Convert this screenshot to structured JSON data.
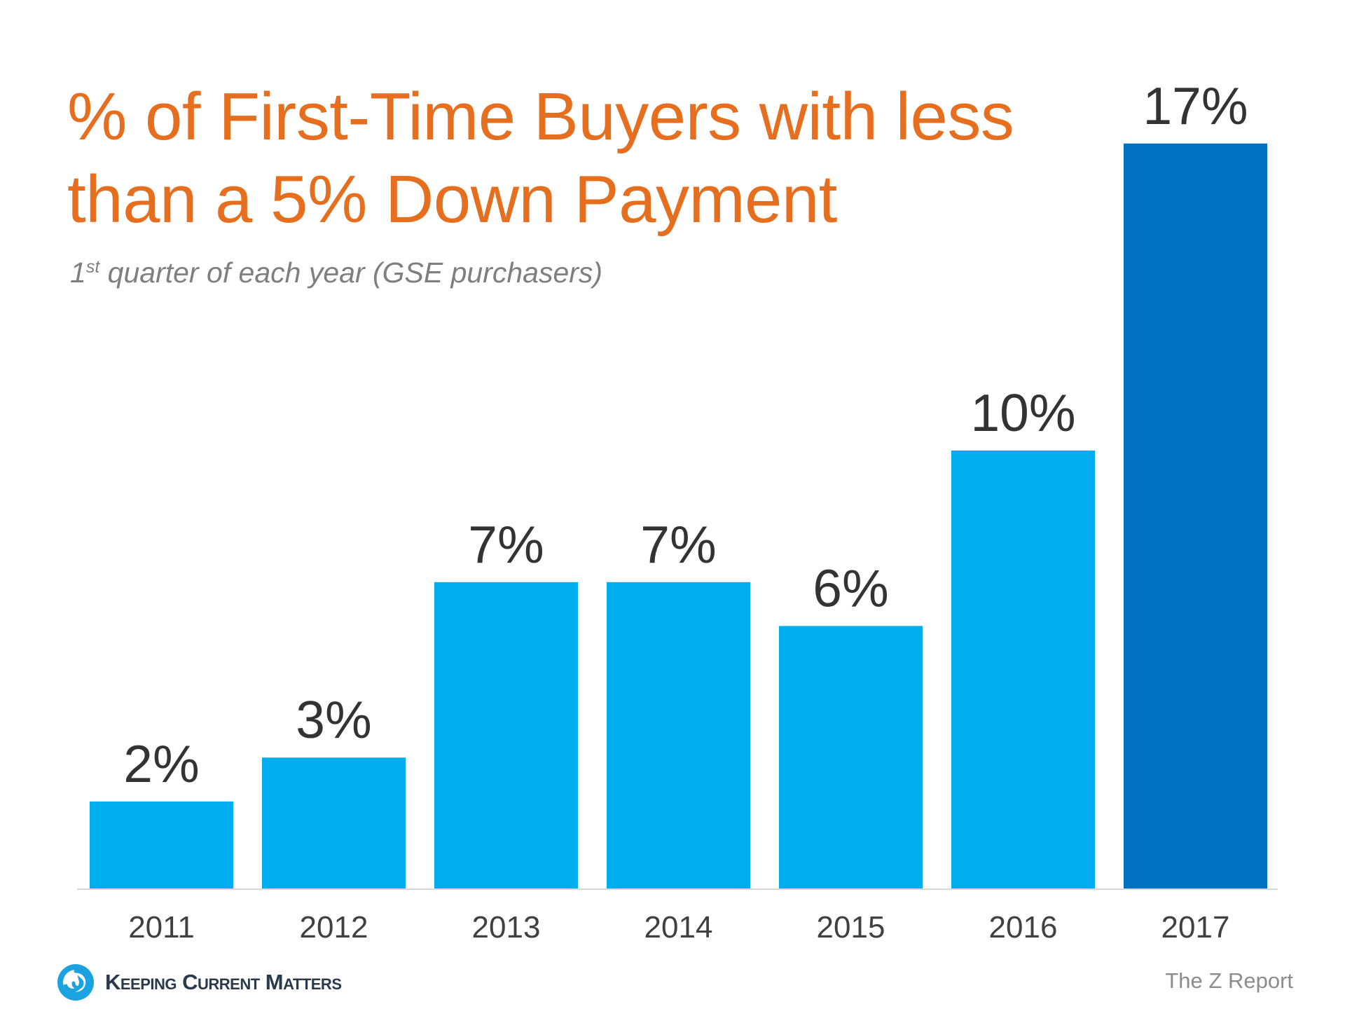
{
  "title": "% of First-Time Buyers with less than a 5% Down Payment",
  "subtitle": {
    "prefix": "1",
    "superscript": "st",
    "text": " quarter of each year (GSE purchasers)"
  },
  "chart_data": {
    "type": "bar",
    "title": "% of First-Time Buyers with less than a 5% Down Payment",
    "subtitle": "1st quarter of each year (GSE purchasers)",
    "xlabel": "",
    "ylabel": "",
    "categories": [
      "2011",
      "2012",
      "2013",
      "2014",
      "2015",
      "2016",
      "2017"
    ],
    "values": [
      2,
      3,
      7,
      7,
      6,
      10,
      17
    ],
    "data_labels": [
      "2%",
      "3%",
      "7%",
      "7%",
      "6%",
      "10%",
      "17%"
    ],
    "unit": "%",
    "ylim": [
      0,
      17
    ],
    "grid": false,
    "legend": "none",
    "colors": [
      "#00AEEF",
      "#00AEEF",
      "#00AEEF",
      "#00AEEF",
      "#00AEEF",
      "#00AEEF",
      "#0070C0"
    ]
  },
  "colors": {
    "title": "#E56F1E",
    "bar": "#00AEEF",
    "bar_highlight": "#0070C0",
    "axis": "#D9D9D9"
  },
  "footer": {
    "logo_text": "Keeping Current Matters",
    "logo_icon": "swirl-logo-icon",
    "source": "The Z Report"
  }
}
